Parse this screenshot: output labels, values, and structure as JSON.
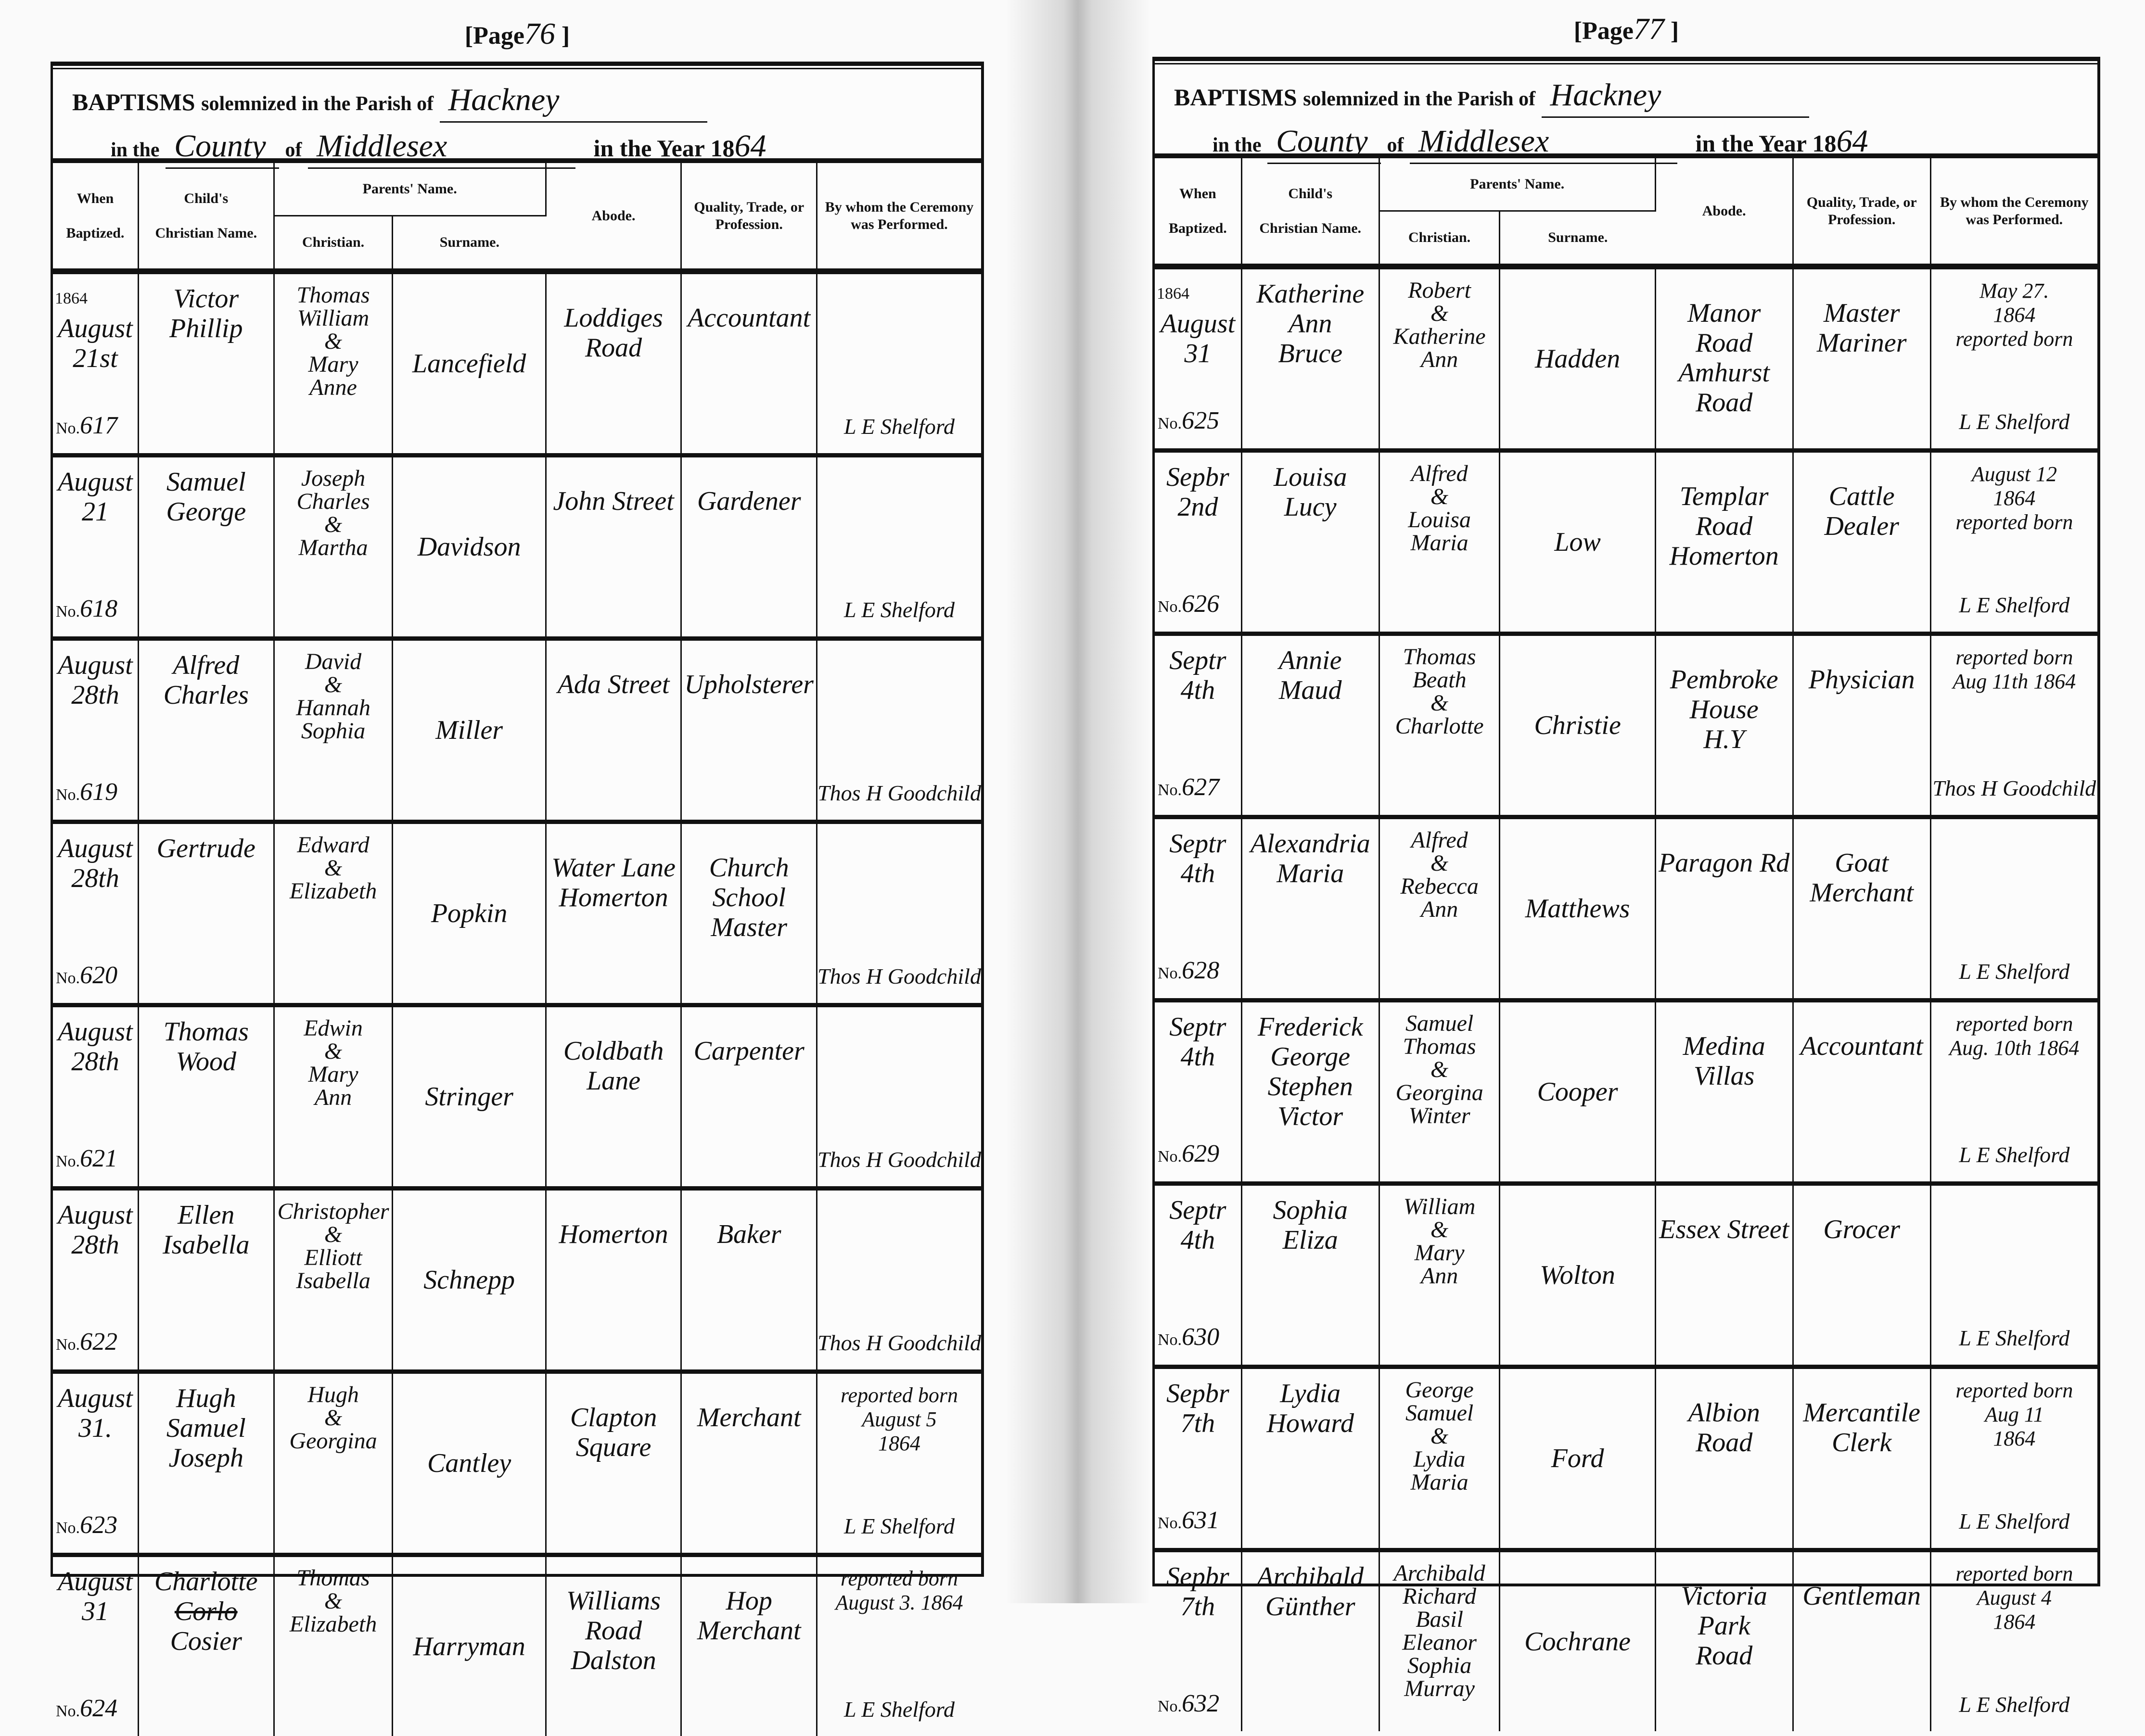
{
  "header_labels": {
    "baptisms": "BAPTISMS",
    "solemnized": "solemnized in the Parish of",
    "in_the": "in the",
    "of": "of",
    "in_the_year": "in the Year 18",
    "when": "When",
    "baptized": "Baptized.",
    "childs": "Child's",
    "christian_name": "Christian Name.",
    "parents_name": "Parents' Name.",
    "christian": "Christian.",
    "surname": "Surname.",
    "abode": "Abode.",
    "quality": "Quality, Trade, or Profession.",
    "by_whom": "By whom the Ceremony was Performed.",
    "no": "No.",
    "page": "[Page",
    "page_close": "]"
  },
  "pages": [
    {
      "page_number": "76",
      "parish": "Hackney",
      "county_word": "County",
      "county": "Middlesex",
      "year": "64",
      "rows": [
        {
          "year": "1864",
          "date": [
            "August",
            "21st"
          ],
          "no": "617",
          "child": [
            "Victor",
            "Phillip"
          ],
          "parent_christian": [
            "Thomas",
            "William",
            "&",
            "Mary",
            "Anne"
          ],
          "surname": [
            "Lancefield"
          ],
          "abode": [
            "Loddiges",
            "Road"
          ],
          "quality": [
            "Accountant"
          ],
          "note": [],
          "officiant": "L E Shelford"
        },
        {
          "date": [
            "August",
            "21"
          ],
          "no": "618",
          "child": [
            "Samuel",
            "George"
          ],
          "parent_christian": [
            "Joseph",
            "Charles",
            "&",
            "Martha"
          ],
          "surname": [
            "Davidson"
          ],
          "abode": [
            "John Street"
          ],
          "quality": [
            "Gardener"
          ],
          "note": [],
          "officiant": "L E Shelford"
        },
        {
          "date": [
            "August",
            "28th"
          ],
          "no": "619",
          "child": [
            "Alfred",
            "Charles"
          ],
          "parent_christian": [
            "David",
            "&",
            "Hannah",
            "Sophia"
          ],
          "surname": [
            "Miller"
          ],
          "abode": [
            "Ada Street"
          ],
          "quality": [
            "Upholsterer"
          ],
          "note": [],
          "officiant": "Thos H Goodchild"
        },
        {
          "date": [
            "August",
            "28th"
          ],
          "no": "620",
          "child": [
            "Gertrude"
          ],
          "parent_christian": [
            "Edward",
            "&",
            "Elizabeth"
          ],
          "surname": [
            "Popkin"
          ],
          "abode": [
            "Water Lane",
            "Homerton"
          ],
          "quality": [
            "Church",
            "School Master"
          ],
          "note": [],
          "officiant": "Thos H Goodchild"
        },
        {
          "date": [
            "August",
            "28th"
          ],
          "no": "621",
          "child": [
            "Thomas",
            "Wood"
          ],
          "parent_christian": [
            "Edwin",
            "&",
            "Mary",
            "Ann"
          ],
          "surname": [
            "Stringer"
          ],
          "abode": [
            "Coldbath",
            "Lane"
          ],
          "quality": [
            "Carpenter"
          ],
          "note": [],
          "officiant": "Thos H Goodchild"
        },
        {
          "date": [
            "August",
            "28th"
          ],
          "no": "622",
          "child": [
            "Ellen",
            "Isabella"
          ],
          "parent_christian": [
            "Christopher",
            "&",
            "Elliott",
            "Isabella"
          ],
          "surname": [
            "Schnepp"
          ],
          "abode": [
            "Homerton"
          ],
          "quality": [
            "Baker"
          ],
          "note": [],
          "officiant": "Thos H Goodchild"
        },
        {
          "date": [
            "August",
            "31."
          ],
          "no": "623",
          "child": [
            "Hugh",
            "Samuel",
            "Joseph"
          ],
          "parent_christian": [
            "Hugh",
            "&",
            "Georgina"
          ],
          "surname": [
            "Cantley"
          ],
          "abode": [
            "Clapton",
            "Square"
          ],
          "quality": [
            "Merchant"
          ],
          "note": [
            "reported born",
            "August 5",
            "1864"
          ],
          "officiant": "L E Shelford"
        },
        {
          "date": [
            "August",
            "31"
          ],
          "no": "624",
          "child": [
            "Charlotte",
            "Corlo",
            "Cosier"
          ],
          "struck_child_line": 1,
          "parent_christian": [
            "Thomas",
            "&",
            "Elizabeth"
          ],
          "surname": [
            "Harryman"
          ],
          "abode": [
            "Williams",
            "Road",
            "Dalston"
          ],
          "quality": [
            "Hop",
            "Merchant"
          ],
          "note": [
            "reported born",
            "August 3. 1864"
          ],
          "officiant": "L E Shelford"
        }
      ]
    },
    {
      "page_number": "77",
      "parish": "Hackney",
      "county_word": "County",
      "county": "Middlesex",
      "year": "64",
      "rows": [
        {
          "year": "1864",
          "date": [
            "August",
            "31"
          ],
          "no": "625",
          "child": [
            "Katherine",
            "Ann",
            "Bruce"
          ],
          "parent_christian": [
            "Robert",
            "&",
            "Katherine",
            "Ann"
          ],
          "surname": [
            "Hadden"
          ],
          "abode": [
            "Manor",
            "Road",
            "Amhurst",
            "Road"
          ],
          "quality": [
            "Master",
            "Mariner"
          ],
          "note": [
            "May 27.",
            "1864",
            "reported born"
          ],
          "officiant": "L E Shelford"
        },
        {
          "date": [
            "Sepbr",
            "2nd"
          ],
          "no": "626",
          "child": [
            "Louisa",
            "Lucy"
          ],
          "parent_christian": [
            "Alfred",
            "&",
            "Louisa",
            "Maria"
          ],
          "surname": [
            "Low"
          ],
          "abode": [
            "Templar",
            "Road",
            "Homerton"
          ],
          "quality": [
            "Cattle",
            "Dealer"
          ],
          "note": [
            "August 12",
            "1864",
            "reported born"
          ],
          "officiant": "L E Shelford"
        },
        {
          "date": [
            "Septr",
            "4th"
          ],
          "no": "627",
          "child": [
            "Annie",
            "Maud"
          ],
          "parent_christian": [
            "Thomas",
            "Beath",
            "&",
            "Charlotte"
          ],
          "surname": [
            "Christie"
          ],
          "abode": [
            "Pembroke",
            "House",
            "H.Y"
          ],
          "quality": [
            "Physician"
          ],
          "note": [
            "reported born",
            "Aug 11th 1864"
          ],
          "officiant": "Thos H Goodchild"
        },
        {
          "date": [
            "Septr",
            "4th"
          ],
          "no": "628",
          "child": [
            "Alexandria",
            "Maria"
          ],
          "parent_christian": [
            "Alfred",
            "&",
            "Rebecca",
            "Ann"
          ],
          "surname": [
            "Matthews"
          ],
          "abode": [
            "Paragon Rd"
          ],
          "quality": [
            "Goat",
            "Merchant"
          ],
          "note": [],
          "officiant": "L E Shelford"
        },
        {
          "date": [
            "Septr",
            "4th"
          ],
          "no": "629",
          "child": [
            "Frederick",
            "George",
            "Stephen",
            "Victor"
          ],
          "parent_christian": [
            "Samuel",
            "Thomas",
            "&",
            "Georgina",
            "Winter"
          ],
          "surname": [
            "Cooper"
          ],
          "abode": [
            "Medina",
            "Villas"
          ],
          "quality": [
            "Accountant"
          ],
          "note": [
            "reported born",
            "Aug. 10th 1864"
          ],
          "officiant": "L E Shelford"
        },
        {
          "date": [
            "Septr",
            "4th"
          ],
          "no": "630",
          "child": [
            "Sophia",
            "Eliza"
          ],
          "parent_christian": [
            "William",
            "&",
            "Mary",
            "Ann"
          ],
          "surname": [
            "Wolton"
          ],
          "abode": [
            "Essex Street"
          ],
          "quality": [
            "Grocer"
          ],
          "note": [],
          "officiant": "L E Shelford"
        },
        {
          "date": [
            "Sepbr",
            "7th"
          ],
          "no": "631",
          "child": [
            "Lydia",
            "Howard"
          ],
          "parent_christian": [
            "George",
            "Samuel",
            "&",
            "Lydia",
            "Maria"
          ],
          "surname": [
            "Ford"
          ],
          "abode": [
            "Albion",
            "Road"
          ],
          "quality": [
            "Mercantile",
            "Clerk"
          ],
          "note": [
            "reported born",
            "Aug 11",
            "1864"
          ],
          "officiant": "L E Shelford"
        },
        {
          "date": [
            "Sepbr",
            "7th"
          ],
          "no": "632",
          "child": [
            "Archibald",
            "Günther"
          ],
          "parent_christian": [
            "Archibald",
            "Richard",
            "Basil",
            "Eleanor",
            "Sophia",
            "Murray"
          ],
          "surname": [
            "Cochrane"
          ],
          "abode": [
            "Victoria",
            "Park",
            "Road"
          ],
          "quality": [
            "Gentleman"
          ],
          "note": [
            "reported born",
            "August 4",
            "1864"
          ],
          "officiant": "L E Shelford"
        }
      ]
    }
  ]
}
